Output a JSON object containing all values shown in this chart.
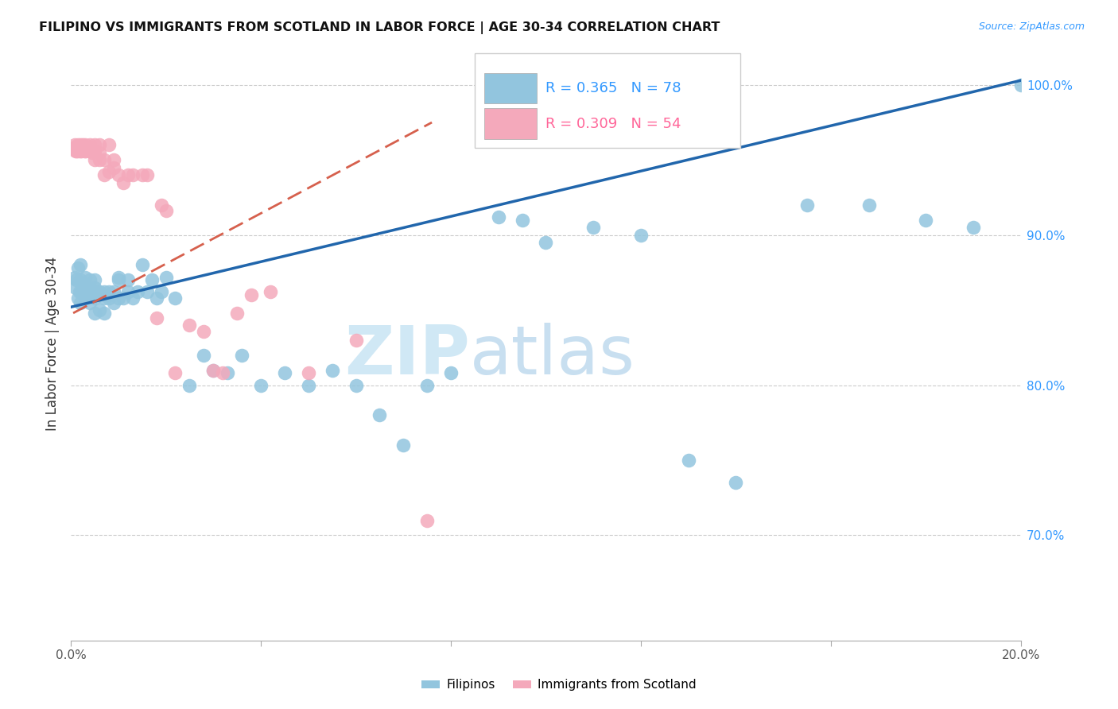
{
  "title": "FILIPINO VS IMMIGRANTS FROM SCOTLAND IN LABOR FORCE | AGE 30-34 CORRELATION CHART",
  "source": "Source: ZipAtlas.com",
  "ylabel": "In Labor Force | Age 30-34",
  "xlim": [
    0.0,
    0.2
  ],
  "ylim": [
    0.63,
    1.025
  ],
  "blue_R": 0.365,
  "blue_N": 78,
  "pink_R": 0.309,
  "pink_N": 54,
  "blue_color": "#92C5DE",
  "pink_color": "#F4A9BB",
  "blue_line_color": "#2166AC",
  "pink_line_color": "#D6604D",
  "watermark_zip": "ZIP",
  "watermark_atlas": "atlas",
  "watermark_color": "#D0E8F5",
  "legend_label_blue": "Filipinos",
  "legend_label_pink": "Immigrants from Scotland",
  "blue_x": [
    0.0008,
    0.001,
    0.0012,
    0.0015,
    0.0015,
    0.0018,
    0.002,
    0.002,
    0.002,
    0.0022,
    0.0025,
    0.003,
    0.003,
    0.003,
    0.003,
    0.0035,
    0.004,
    0.004,
    0.004,
    0.004,
    0.0045,
    0.005,
    0.005,
    0.005,
    0.005,
    0.005,
    0.006,
    0.006,
    0.006,
    0.007,
    0.007,
    0.007,
    0.008,
    0.008,
    0.008,
    0.009,
    0.009,
    0.01,
    0.01,
    0.01,
    0.011,
    0.012,
    0.012,
    0.013,
    0.014,
    0.015,
    0.016,
    0.017,
    0.018,
    0.019,
    0.02,
    0.022,
    0.025,
    0.028,
    0.03,
    0.033,
    0.036,
    0.04,
    0.045,
    0.05,
    0.055,
    0.06,
    0.065,
    0.07,
    0.075,
    0.08,
    0.09,
    0.095,
    0.1,
    0.11,
    0.12,
    0.13,
    0.14,
    0.155,
    0.168,
    0.18,
    0.19,
    0.2
  ],
  "blue_y": [
    0.872,
    0.865,
    0.87,
    0.858,
    0.878,
    0.862,
    0.855,
    0.87,
    0.88,
    0.862,
    0.868,
    0.86,
    0.872,
    0.858,
    0.866,
    0.865,
    0.862,
    0.87,
    0.855,
    0.862,
    0.86,
    0.858,
    0.865,
    0.87,
    0.848,
    0.862,
    0.86,
    0.85,
    0.862,
    0.858,
    0.862,
    0.848,
    0.86,
    0.858,
    0.862,
    0.855,
    0.862,
    0.87,
    0.858,
    0.872,
    0.858,
    0.862,
    0.87,
    0.858,
    0.862,
    0.88,
    0.862,
    0.87,
    0.858,
    0.862,
    0.872,
    0.858,
    0.8,
    0.82,
    0.81,
    0.808,
    0.82,
    0.8,
    0.808,
    0.8,
    0.81,
    0.8,
    0.78,
    0.76,
    0.8,
    0.808,
    0.912,
    0.91,
    0.895,
    0.905,
    0.9,
    0.75,
    0.735,
    0.92,
    0.92,
    0.91,
    0.905,
    1.0
  ],
  "pink_x": [
    0.0005,
    0.0008,
    0.001,
    0.001,
    0.0012,
    0.0015,
    0.0015,
    0.0018,
    0.002,
    0.002,
    0.002,
    0.0022,
    0.0025,
    0.003,
    0.003,
    0.003,
    0.003,
    0.0035,
    0.004,
    0.004,
    0.004,
    0.0045,
    0.005,
    0.005,
    0.005,
    0.006,
    0.006,
    0.006,
    0.007,
    0.007,
    0.008,
    0.008,
    0.009,
    0.009,
    0.01,
    0.011,
    0.012,
    0.013,
    0.015,
    0.016,
    0.018,
    0.019,
    0.02,
    0.022,
    0.025,
    0.028,
    0.03,
    0.032,
    0.035,
    0.038,
    0.042,
    0.05,
    0.06,
    0.075
  ],
  "pink_y": [
    0.958,
    0.96,
    0.956,
    0.958,
    0.956,
    0.96,
    0.956,
    0.958,
    0.956,
    0.96,
    0.958,
    0.956,
    0.96,
    0.956,
    0.958,
    0.96,
    0.956,
    0.958,
    0.956,
    0.96,
    0.958,
    0.955,
    0.95,
    0.96,
    0.956,
    0.95,
    0.955,
    0.96,
    0.94,
    0.95,
    0.942,
    0.96,
    0.945,
    0.95,
    0.94,
    0.935,
    0.94,
    0.94,
    0.94,
    0.94,
    0.845,
    0.92,
    0.916,
    0.808,
    0.84,
    0.836,
    0.81,
    0.808,
    0.848,
    0.86,
    0.862,
    0.808,
    0.83,
    0.71
  ],
  "blue_trendline_x": [
    0.0,
    0.2
  ],
  "blue_trendline_y": [
    0.852,
    1.003
  ],
  "pink_trendline_x": [
    0.0005,
    0.076
  ],
  "pink_trendline_y": [
    0.848,
    0.975
  ]
}
